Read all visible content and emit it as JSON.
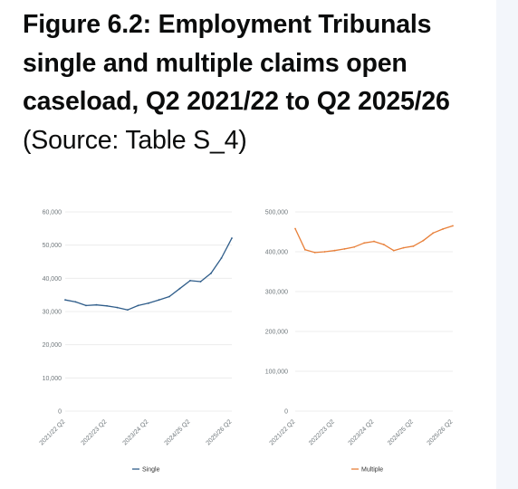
{
  "heading": {
    "title": "Figure 6.2: Employment Tribunals single and multiple claims open caseload, Q2 2021/22 to Q2 2025/26",
    "source": "(Source: Table S_4)"
  },
  "colors": {
    "single": "#2f5d8a",
    "multiple": "#e8803a",
    "grid": "#e8e8e8",
    "side_panel": "#f3f6fb"
  },
  "chart_data": [
    {
      "type": "line",
      "x_tick_labels": [
        "2021/22 Q2",
        "2022/23 Q2",
        "2023/24 Q2",
        "2024/25 Q2",
        "2025/26 Q2"
      ],
      "x": [
        0,
        1,
        2,
        3,
        4,
        5,
        6,
        7,
        8,
        9,
        10,
        11,
        12,
        13,
        14,
        15,
        16
      ],
      "y_ticks": [
        "0",
        "10,000",
        "20,000",
        "30,000",
        "40,000",
        "50,000",
        "60,000"
      ],
      "ylim": [
        0,
        60000
      ],
      "grid": true,
      "legend": "bottom",
      "series": [
        {
          "name": "Single",
          "values": [
            33500,
            32900,
            31800,
            32000,
            31700,
            31200,
            30500,
            31800,
            32500,
            33500,
            34500,
            36900,
            39300,
            39000,
            41500,
            46100,
            52100
          ]
        }
      ]
    },
    {
      "type": "line",
      "x_tick_labels": [
        "2021/22 Q2",
        "2022/23 Q2",
        "2023/24 Q2",
        "2024/25 Q2",
        "2025/26 Q2"
      ],
      "x": [
        0,
        1,
        2,
        3,
        4,
        5,
        6,
        7,
        8,
        9,
        10,
        11,
        12,
        13,
        14,
        15,
        16
      ],
      "y_ticks": [
        "0",
        "100,000",
        "200,000",
        "300,000",
        "400,000",
        "500,000"
      ],
      "ylim": [
        0,
        500000
      ],
      "grid": true,
      "legend": "bottom",
      "series": [
        {
          "name": "Multiple",
          "values": [
            458000,
            405000,
            398000,
            400000,
            403000,
            407000,
            412000,
            422000,
            426000,
            418000,
            403000,
            410000,
            414000,
            428000,
            447000,
            457000,
            465000
          ]
        }
      ]
    }
  ]
}
